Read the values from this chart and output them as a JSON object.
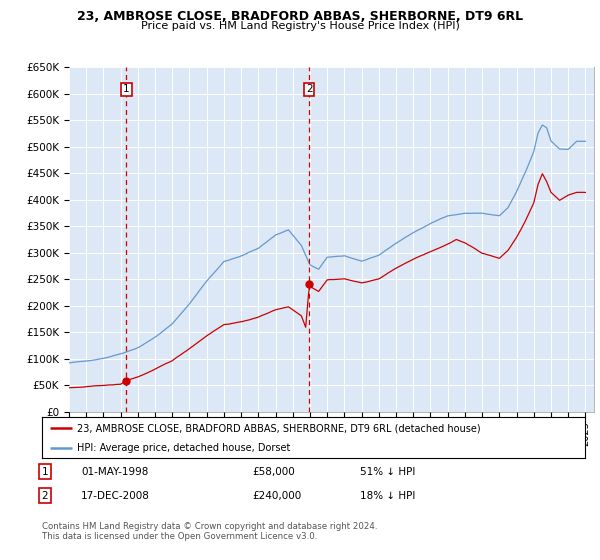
{
  "title": "23, AMBROSE CLOSE, BRADFORD ABBAS, SHERBORNE, DT9 6RL",
  "subtitle": "Price paid vs. HM Land Registry's House Price Index (HPI)",
  "red_color": "#cc0000",
  "blue_color": "#6699cc",
  "ylim": [
    0,
    650000
  ],
  "yticks": [
    0,
    50000,
    100000,
    150000,
    200000,
    250000,
    300000,
    350000,
    400000,
    450000,
    500000,
    550000,
    600000,
    650000
  ],
  "ytick_labels": [
    "£0",
    "£50K",
    "£100K",
    "£150K",
    "£200K",
    "£250K",
    "£300K",
    "£350K",
    "£400K",
    "£450K",
    "£500K",
    "£550K",
    "£600K",
    "£650K"
  ],
  "xlim_start": 1995.0,
  "xlim_end": 2025.5,
  "purchase1_x": 1998.33,
  "purchase1_y": 58000,
  "purchase1_label": "1",
  "purchase1_date": "01-MAY-1998",
  "purchase1_price": "£58,000",
  "purchase1_hpi": "51% ↓ HPI",
  "purchase2_x": 2008.96,
  "purchase2_y": 240000,
  "purchase2_label": "2",
  "purchase2_date": "17-DEC-2008",
  "purchase2_price": "£240,000",
  "purchase2_hpi": "18% ↓ HPI",
  "legend_line1": "23, AMBROSE CLOSE, BRADFORD ABBAS, SHERBORNE, DT9 6RL (detached house)",
  "legend_line2": "HPI: Average price, detached house, Dorset",
  "footnote": "Contains HM Land Registry data © Crown copyright and database right 2024.\nThis data is licensed under the Open Government Licence v3.0."
}
